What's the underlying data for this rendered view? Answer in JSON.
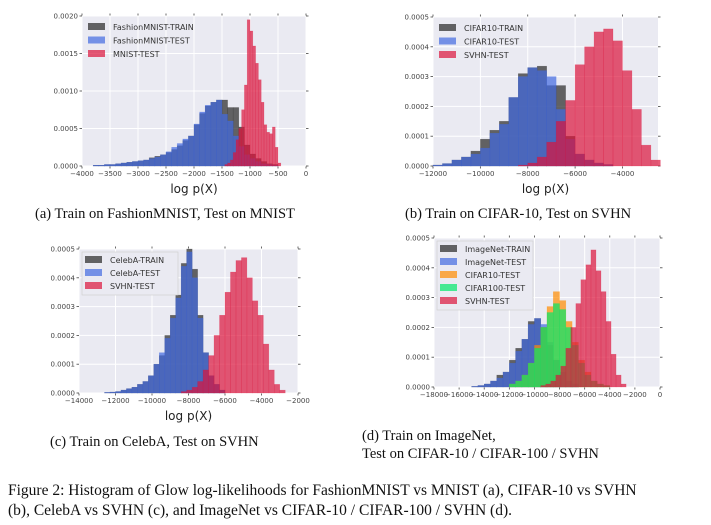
{
  "chart_data": [
    {
      "type": "bar",
      "title": "",
      "xlabel": "log p(X)",
      "ylabel": "",
      "xlim": [
        -4000,
        0
      ],
      "ylim": [
        0,
        0.002
      ],
      "xticks": [
        -4000,
        -3500,
        -3000,
        -2500,
        -2000,
        -1500,
        -1000,
        -500,
        0
      ],
      "xtick_labels": [
        "−4000",
        "−3500",
        "−3000",
        "−2500",
        "−2000",
        "−1500",
        "−1000",
        "−500",
        "0"
      ],
      "yticks": [
        0,
        0.0005,
        0.001,
        0.0015,
        0.002
      ],
      "ytick_labels": [
        "0.0000",
        "0.0005",
        "0.0010",
        "0.0015",
        "0.0020"
      ],
      "grid": true,
      "legend": "top-left",
      "series": [
        {
          "name": "FashionMNIST-TRAIN",
          "color": "#262626",
          "bin_start": -3800,
          "bin_width": 100,
          "values": [
            1e-05,
            1e-05,
            2e-05,
            2e-05,
            3e-05,
            4e-05,
            5e-05,
            6e-05,
            7e-05,
            8e-05,
            0.00011,
            0.00013,
            0.00015,
            0.00018,
            0.00022,
            0.00027,
            0.00034,
            0.0004,
            0.00055,
            0.0007,
            0.0008,
            0.00085,
            0.00088,
            0.00088,
            0.00078,
            0.00078,
            0.00052,
            0.00028,
            0.00016,
            0.0001,
            6e-05,
            3e-05,
            2e-05
          ]
        },
        {
          "name": "FashionMNIST-TEST",
          "color": "#4169e1",
          "bin_start": -3800,
          "bin_width": 100,
          "values": [
            1e-05,
            1e-05,
            2e-05,
            2e-05,
            3e-05,
            4e-05,
            5e-05,
            6e-05,
            7e-05,
            8e-05,
            0.0001,
            0.00012,
            0.00015,
            0.00019,
            0.00025,
            0.0003,
            0.00036,
            0.0004,
            0.00056,
            0.00072,
            0.00081,
            0.00085,
            0.00088,
            0.00069,
            0.0006,
            0.0004,
            0.00026,
            0.00015,
            0.0001,
            6e-05,
            3e-05,
            2e-05,
            1e-05
          ]
        },
        {
          "name": "MNIST-TEST",
          "color": "#dc143c",
          "bin_start": -1450,
          "bin_width": 50,
          "values": [
            2e-05,
            4e-05,
            8e-05,
            0.00018,
            0.00035,
            0.0005,
            0.00075,
            0.00108,
            0.00195,
            0.0018,
            0.0016,
            0.00137,
            0.00115,
            0.00085,
            0.00055,
            0.00045,
            0.00043,
            0.00052,
            0.00025,
            4e-05
          ]
        }
      ]
    },
    {
      "type": "bar",
      "title": "",
      "xlabel": "log p(X)",
      "ylabel": "",
      "xlim": [
        -12000,
        -2500
      ],
      "ylim": [
        0,
        0.0005
      ],
      "xticks": [
        -12000,
        -10000,
        -8000,
        -6000,
        -4000
      ],
      "xtick_labels": [
        "−12000",
        "−10000",
        "−8000",
        "−6000",
        "−4000"
      ],
      "yticks": [
        0,
        0.0001,
        0.0002,
        0.0003,
        0.0004,
        0.0005
      ],
      "ytick_labels": [
        "0.0000",
        "0.0001",
        "0.0002",
        "0.0003",
        "0.0004",
        "0.0005"
      ],
      "grid": true,
      "legend": "top-left",
      "series": [
        {
          "name": "CIFAR10-TRAIN",
          "color": "#262626",
          "bin_start": -12000,
          "bin_width": 400,
          "values": [
            3e-06,
            8e-06,
            2e-05,
            3e-05,
            5e-05,
            9e-05,
            0.00012,
            0.00015,
            0.00023,
            0.00031,
            0.00033,
            0.000335,
            0.00027,
            0.00027,
            0.0001,
            4e-05,
            2e-05,
            1e-05,
            5e-06
          ]
        },
        {
          "name": "CIFAR10-TEST",
          "color": "#4169e1",
          "bin_start": -12000,
          "bin_width": 400,
          "values": [
            3e-06,
            8e-06,
            2e-05,
            3e-05,
            4e-05,
            6e-05,
            0.00011,
            0.00014,
            0.00023,
            0.0003,
            0.00033,
            0.00032,
            0.0003,
            0.00019,
            9e-05,
            4e-05,
            2e-05,
            1e-05,
            5e-06
          ]
        },
        {
          "name": "SVHN-TEST",
          "color": "#dc143c",
          "bin_start": -8400,
          "bin_width": 400,
          "values": [
            3e-06,
            1e-05,
            3e-05,
            8e-05,
            0.00015,
            0.00022,
            0.00034,
            0.0004,
            0.00045,
            0.00046,
            0.00042,
            0.00032,
            0.00019,
            7e-05,
            2e-05
          ]
        }
      ]
    },
    {
      "type": "bar",
      "title": "",
      "xlabel": "log p(X)",
      "ylabel": "",
      "xlim": [
        -14000,
        -2000
      ],
      "ylim": [
        0,
        0.0005
      ],
      "xticks": [
        -14000,
        -12000,
        -10000,
        -8000,
        -6000,
        -4000,
        -2000
      ],
      "xtick_labels": [
        "−14000",
        "−12000",
        "−10000",
        "−8000",
        "−6000",
        "−4000",
        "−2000"
      ],
      "yticks": [
        0,
        0.0001,
        0.0002,
        0.0003,
        0.0004,
        0.0005
      ],
      "ytick_labels": [
        "0.0000",
        "0.0001",
        "0.0002",
        "0.0003",
        "0.0004",
        "0.0005"
      ],
      "grid": true,
      "legend": "top-left",
      "series": [
        {
          "name": "CelebA-TRAIN",
          "color": "#262626",
          "bin_start": -12600,
          "bin_width": 300,
          "values": [
            2e-06,
            3e-06,
            5e-06,
            1e-05,
            1.5e-05,
            2e-05,
            3e-05,
            4e-05,
            6e-05,
            0.0001,
            0.00013,
            0.0002,
            0.00027,
            0.00034,
            0.00045,
            0.0005,
            0.00043,
            0.00027,
            0.00014,
            6e-05,
            3e-05,
            1e-05
          ]
        },
        {
          "name": "CelebA-TEST",
          "color": "#4169e1",
          "bin_start": -12600,
          "bin_width": 300,
          "values": [
            2e-06,
            3e-06,
            5e-06,
            1e-05,
            1.5e-05,
            2e-05,
            3e-05,
            4e-05,
            6e-05,
            0.0001,
            0.00014,
            0.00019,
            0.00026,
            0.00033,
            0.00044,
            0.00049,
            0.0004,
            0.00026,
            0.00014,
            6e-05,
            3e-05,
            1e-05
          ]
        },
        {
          "name": "SVHN-TEST",
          "color": "#dc143c",
          "bin_start": -8400,
          "bin_width": 300,
          "values": [
            5e-06,
            1e-05,
            2e-05,
            4e-05,
            8e-05,
            0.00013,
            0.0002,
            0.00027,
            0.00035,
            0.00042,
            0.00046,
            0.00047,
            0.0004,
            0.00032,
            0.00027,
            0.00017,
            8e-05,
            3e-05,
            1e-05
          ]
        }
      ]
    },
    {
      "type": "bar",
      "title": "",
      "xlabel": "",
      "ylabel": "",
      "xlim": [
        -18000,
        0
      ],
      "ylim": [
        0,
        0.0005
      ],
      "xticks": [
        -18000,
        -16000,
        -14000,
        -12000,
        -10000,
        -8000,
        -6000,
        -4000,
        -2000,
        0
      ],
      "xtick_labels": [
        "−18000",
        "−16000",
        "−14000",
        "−12000",
        "−10000",
        "−8000",
        "−6000",
        "−4000",
        "−2000",
        "0"
      ],
      "yticks": [
        0,
        0.0001,
        0.0002,
        0.0003,
        0.0004,
        0.0005
      ],
      "ytick_labels": [
        "0.0000",
        "0.0001",
        "0.0002",
        "0.0003",
        "0.0004",
        "0.0005"
      ],
      "grid": true,
      "legend": "top-left",
      "series": [
        {
          "name": "ImageNet-TRAIN",
          "color": "#262626",
          "bin_start": -15000,
          "bin_width": 500,
          "values": [
            2e-06,
            5e-06,
            1e-05,
            2e-05,
            4e-05,
            5e-05,
            9e-05,
            0.00013,
            0.00016,
            0.00022,
            0.00023,
            0.0002,
            0.00014,
            9e-05,
            5e-05,
            2e-05,
            1e-05
          ]
        },
        {
          "name": "ImageNet-TEST",
          "color": "#4169e1",
          "bin_start": -15000,
          "bin_width": 500,
          "values": [
            2e-06,
            5e-06,
            1e-05,
            2e-05,
            3e-05,
            5e-05,
            8e-05,
            0.00012,
            0.00016,
            0.00021,
            0.00023,
            0.00021,
            0.00015,
            9e-05,
            5e-05,
            2e-05,
            1e-05
          ]
        },
        {
          "name": "CIFAR10-TEST",
          "color": "#ff8c00",
          "bin_start": -12000,
          "bin_width": 500,
          "values": [
            1e-05,
            2e-05,
            4e-05,
            8e-05,
            0.00014,
            0.0002,
            0.00027,
            0.00032,
            0.00029,
            0.00022,
            0.00015,
            9e-05,
            5e-05,
            2e-05,
            1e-05,
            5e-06
          ]
        },
        {
          "name": "CIFAR100-TEST",
          "color": "#00e86a",
          "bin_start": -12000,
          "bin_width": 500,
          "values": [
            1e-05,
            2e-05,
            4e-05,
            8e-05,
            0.00013,
            0.0002,
            0.00025,
            0.00028,
            0.00026,
            0.0002,
            0.00014,
            8e-05,
            4e-05,
            2e-05,
            1e-05,
            5e-06
          ]
        },
        {
          "name": "SVHN-TEST",
          "color": "#dc143c",
          "bin_start": -9500,
          "bin_width": 400,
          "values": [
            5e-06,
            1e-05,
            2e-05,
            4e-05,
            7e-05,
            0.00013,
            0.0002,
            0.00028,
            0.00036,
            0.00041,
            0.00046,
            0.00039,
            0.00032,
            0.00022,
            0.00011,
            4e-05,
            1e-05
          ]
        }
      ]
    }
  ],
  "captions": {
    "a": "(a) Train on FashionMNIST, Test on MNIST",
    "b": "(b) Train on CIFAR-10, Test on SVHN",
    "c": "(c) Train on CelebA, Test on SVHN",
    "d_line1": "(d) Train on ImageNet,",
    "d_line2": "Test on CIFAR-10 / CIFAR-100 / SVHN"
  },
  "figure_caption": {
    "line1": "Figure 2: Histogram of Glow log-likelihoods for FashionMNIST vs MNIST (a), CIFAR-10 vs SVHN",
    "line2": "(b), CelebA vs SVHN (c), and ImageNet vs CIFAR-10 / CIFAR-100 / SVHN (d)."
  }
}
